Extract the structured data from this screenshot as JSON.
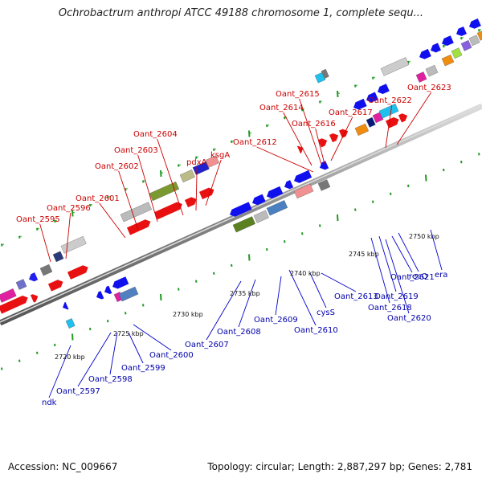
{
  "title": "Ochrobactrum anthropi ATCC 49188 chromosome 1, complete sequ...",
  "footer": {
    "accession": "Accession: NC_009667",
    "summary": "Topology: circular; Length: 2,887,297 bp; Genes: 2,781"
  },
  "colors": {
    "top_label": "#cc0000",
    "bottom_label": "#0000aa",
    "leader_top": "#cc0000",
    "leader_bottom": "#0000cc",
    "backbone": "#888888",
    "tick": "#229922"
  },
  "kbp_ticks": [
    {
      "label": "2720 kbp",
      "kbp": 2720
    },
    {
      "label": "2725 kbp",
      "kbp": 2725
    },
    {
      "label": "2730 kbp",
      "kbp": 2730
    },
    {
      "label": "2735 kbp",
      "kbp": 2735
    },
    {
      "label": "2740 kbp",
      "kbp": 2740
    },
    {
      "label": "2745 kbp",
      "kbp": 2745
    },
    {
      "label": "2750 kbp",
      "kbp": 2750
    }
  ],
  "top_genes": [
    "Oant_2595",
    "Oant_2596",
    "Oant_2601",
    "Oant_2602",
    "Oant_2603",
    "Oant_2604",
    "pdxA",
    "ksgA",
    "Oant_2612",
    "Oant_2614",
    "Oant_2615",
    "Oant_2616",
    "Oant_2617",
    "Oant_2622",
    "Oant_2623"
  ],
  "bottom_genes": [
    "ndk",
    "Oant_2597",
    "Oant_2598",
    "Oant_2599",
    "Oant_2600",
    "Oant_2607",
    "Oant_2608",
    "Oant_2609",
    "Oant_2610",
    "cysS",
    "Oant_2613",
    "Oant_2618",
    "Oant_2619",
    "Oant_2620",
    "Oant_2621",
    "recO",
    "era"
  ]
}
